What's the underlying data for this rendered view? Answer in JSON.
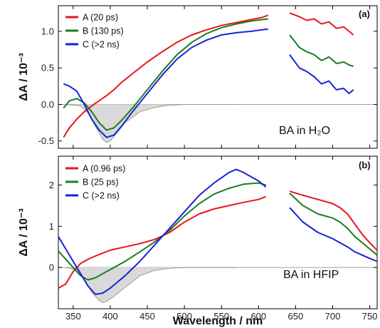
{
  "chart_data": [
    {
      "type": "line",
      "panel_label": "(a)",
      "annotation": "BA in H₂O",
      "xlabel": "Wavelength / nm",
      "ylabel": "ΔA / 10⁻³",
      "xlim": [
        330,
        760
      ],
      "ylim": [
        -0.6,
        1.35
      ],
      "x_ticks": [
        350,
        400,
        450,
        500,
        550,
        600,
        650,
        700,
        750
      ],
      "y_ticks": [
        -0.5,
        0.0,
        0.5,
        1.0
      ],
      "y_tick_labels": [
        "-0.5",
        "0.0",
        "0.5",
        "1.0"
      ],
      "legend_position": "top-left",
      "colors": {
        "A": "#e8161c",
        "B": "#1b7d21",
        "C": "#1a22d8",
        "ground_state": "#9a9a9a",
        "fill": "#d9d9d9"
      },
      "series": [
        {
          "name": "A (20 ps)",
          "key": "A",
          "segments": [
            {
              "x": [
                337,
                345,
                355,
                365,
                375,
                385,
                395,
                405,
                415,
                430,
                450,
                470,
                490,
                510,
                530,
                550,
                570,
                590,
                605,
                613
              ],
              "y": [
                -0.45,
                -0.32,
                -0.2,
                -0.1,
                -0.02,
                0.05,
                0.12,
                0.2,
                0.3,
                0.42,
                0.58,
                0.72,
                0.85,
                0.95,
                1.02,
                1.08,
                1.12,
                1.16,
                1.19,
                1.22
              ]
            },
            {
              "x": [
                642,
                655,
                665,
                675,
                685,
                695,
                705,
                715,
                722,
                728
              ],
              "y": [
                1.25,
                1.2,
                1.15,
                1.17,
                1.1,
                1.13,
                1.04,
                1.06,
                1.0,
                0.95
              ]
            }
          ]
        },
        {
          "name": "B (130 ps)",
          "key": "B",
          "segments": [
            {
              "x": [
                337,
                345,
                355,
                365,
                375,
                385,
                395,
                405,
                415,
                430,
                450,
                470,
                490,
                510,
                530,
                550,
                570,
                590,
                605,
                613
              ],
              "y": [
                -0.05,
                0.05,
                0.08,
                0.02,
                -0.1,
                -0.25,
                -0.35,
                -0.32,
                -0.22,
                -0.05,
                0.2,
                0.45,
                0.68,
                0.85,
                0.97,
                1.05,
                1.1,
                1.14,
                1.16,
                1.17
              ]
            },
            {
              "x": [
                642,
                655,
                665,
                675,
                685,
                695,
                705,
                715,
                722,
                728
              ],
              "y": [
                0.95,
                0.78,
                0.72,
                0.68,
                0.6,
                0.65,
                0.56,
                0.58,
                0.54,
                0.52
              ]
            }
          ]
        },
        {
          "name": "C (>2 ns)",
          "key": "C",
          "segments": [
            {
              "x": [
                337,
                345,
                355,
                365,
                375,
                385,
                395,
                405,
                415,
                430,
                450,
                470,
                490,
                510,
                530,
                550,
                570,
                590,
                605,
                613
              ],
              "y": [
                0.28,
                0.25,
                0.18,
                0.0,
                -0.2,
                -0.35,
                -0.45,
                -0.42,
                -0.3,
                -0.1,
                0.15,
                0.4,
                0.62,
                0.78,
                0.88,
                0.95,
                0.98,
                1.0,
                1.02,
                1.03
              ]
            },
            {
              "x": [
                642,
                655,
                665,
                675,
                685,
                695,
                705,
                715,
                722,
                728
              ],
              "y": [
                0.68,
                0.5,
                0.45,
                0.38,
                0.28,
                0.32,
                0.2,
                0.22,
                0.15,
                0.2
              ]
            }
          ]
        }
      ],
      "ground_state": {
        "x": [
          340,
          360,
          370,
          380,
          390,
          395,
          400,
          410,
          420,
          440,
          460,
          480,
          500,
          520,
          540,
          570
        ],
        "y": [
          0.0,
          -0.02,
          -0.12,
          -0.3,
          -0.48,
          -0.52,
          -0.5,
          -0.38,
          -0.25,
          -0.1,
          -0.04,
          -0.01,
          0.0,
          0.0,
          0.0,
          0.0
        ]
      }
    },
    {
      "type": "line",
      "panel_label": "(b)",
      "annotation": "BA in HFIP",
      "xlabel": "Wavelength / nm",
      "ylabel": "ΔA / 10⁻³",
      "xlim": [
        330,
        760
      ],
      "ylim": [
        -1.0,
        2.7
      ],
      "x_ticks": [
        350,
        400,
        450,
        500,
        550,
        600,
        650,
        700,
        750
      ],
      "y_ticks": [
        0,
        1,
        2
      ],
      "y_tick_labels": [
        "0",
        "1",
        "2"
      ],
      "legend_position": "top-left",
      "colors": {
        "A": "#e8161c",
        "B": "#1b7d21",
        "C": "#1a22d8",
        "ground_state": "#9a9a9a",
        "fill": "#d9d9d9"
      },
      "series": [
        {
          "name": "A (0.96 ps)",
          "key": "A",
          "segments": [
            {
              "x": [
                330,
                340,
                350,
                360,
                370,
                380,
                390,
                400,
                420,
                440,
                460,
                480,
                500,
                520,
                540,
                560,
                580,
                600,
                610
              ],
              "y": [
                -0.5,
                -0.4,
                -0.1,
                0.1,
                0.2,
                0.28,
                0.35,
                0.42,
                0.5,
                0.58,
                0.68,
                0.85,
                1.1,
                1.3,
                1.42,
                1.5,
                1.58,
                1.65,
                1.72
              ]
            },
            {
              "x": [
                642,
                660,
                680,
                700,
                710,
                720,
                730,
                740,
                750,
                760
              ],
              "y": [
                1.85,
                1.75,
                1.65,
                1.55,
                1.45,
                1.3,
                1.05,
                0.8,
                0.6,
                0.42
              ]
            }
          ]
        },
        {
          "name": "B (25 ps)",
          "key": "B",
          "segments": [
            {
              "x": [
                330,
                340,
                350,
                360,
                370,
                380,
                390,
                400,
                420,
                440,
                460,
                480,
                500,
                520,
                540,
                560,
                580,
                600,
                610
              ],
              "y": [
                0.4,
                0.2,
                0.0,
                -0.2,
                -0.3,
                -0.25,
                -0.15,
                -0.05,
                0.15,
                0.38,
                0.62,
                0.9,
                1.25,
                1.55,
                1.78,
                1.92,
                2.02,
                2.05,
                2.0
              ]
            },
            {
              "x": [
                642,
                660,
                680,
                700,
                710,
                720,
                730,
                740,
                750,
                760
              ],
              "y": [
                1.8,
                1.5,
                1.3,
                1.2,
                1.1,
                0.95,
                0.75,
                0.6,
                0.45,
                0.3
              ]
            }
          ]
        },
        {
          "name": "C (>2 ns)",
          "key": "C",
          "segments": [
            {
              "x": [
                330,
                340,
                350,
                360,
                370,
                380,
                390,
                400,
                420,
                440,
                460,
                480,
                500,
                520,
                540,
                560,
                570,
                580,
                600,
                610
              ],
              "y": [
                0.75,
                0.45,
                0.15,
                -0.15,
                -0.45,
                -0.65,
                -0.62,
                -0.5,
                -0.2,
                0.15,
                0.55,
                0.95,
                1.35,
                1.75,
                2.05,
                2.3,
                2.38,
                2.3,
                2.1,
                1.95
              ]
            },
            {
              "x": [
                642,
                660,
                680,
                700,
                710,
                720,
                730,
                740,
                750,
                760
              ],
              "y": [
                1.45,
                1.1,
                0.85,
                0.7,
                0.6,
                0.5,
                0.38,
                0.3,
                0.22,
                0.15
              ]
            }
          ]
        }
      ],
      "ground_state": {
        "x": [
          340,
          355,
          365,
          375,
          385,
          390,
          395,
          405,
          420,
          440,
          460,
          480,
          500,
          520,
          540,
          570
        ],
        "y": [
          0.0,
          -0.05,
          -0.3,
          -0.6,
          -0.8,
          -0.85,
          -0.82,
          -0.7,
          -0.48,
          -0.2,
          -0.07,
          -0.02,
          0.0,
          0.0,
          0.0,
          0.0
        ]
      }
    }
  ]
}
